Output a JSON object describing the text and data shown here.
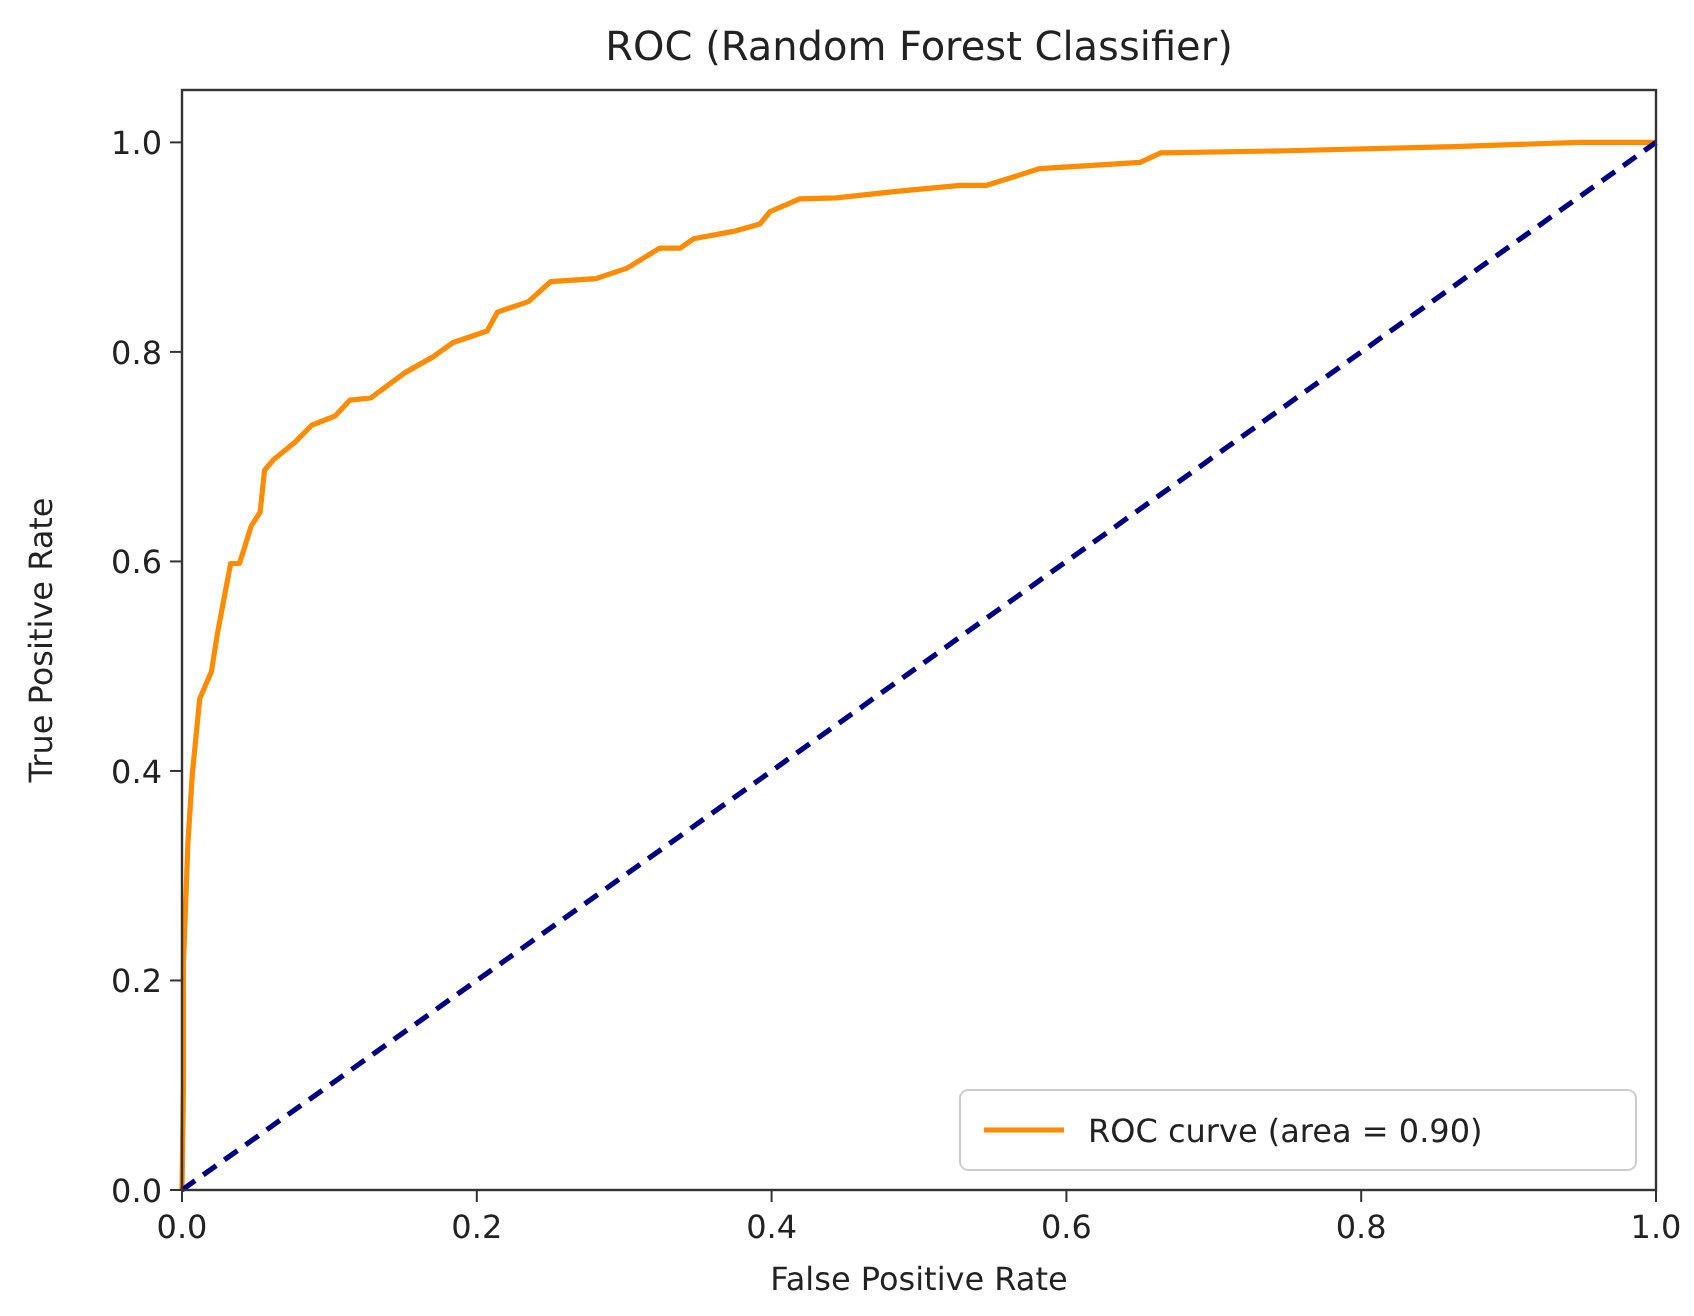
{
  "chart_data": {
    "type": "line",
    "title": "ROC (Random Forest Classifier)",
    "xlabel": "False Positive Rate",
    "ylabel": "True Positive Rate",
    "xlim": [
      0,
      1
    ],
    "ylim": [
      0,
      1.05
    ],
    "xticks": [
      {
        "value": 0,
        "label": "0.0"
      },
      0.2,
      0.4,
      0.6,
      0.8,
      {
        "value": 1,
        "label": "1.0"
      }
    ],
    "yticks": [
      {
        "value": 0,
        "label": "0.0"
      },
      0.2,
      0.4,
      0.6,
      0.8,
      {
        "value": 1,
        "label": "1.0"
      }
    ],
    "legend": "bottom right",
    "grid": false,
    "series": [
      {
        "name": "ROC curve (area = 0.90)",
        "color": "#ff8c00",
        "line_style": "solid",
        "x": [
          0,
          0.001,
          0.001,
          0.004,
          0.007,
          0.012,
          0.02,
          0.024,
          0.033,
          0.039,
          0.047,
          0.053,
          0.056,
          0.062,
          0.076,
          0.088,
          0.104,
          0.114,
          0.128,
          0.151,
          0.17,
          0.184,
          0.207,
          0.214,
          0.235,
          0.25,
          0.281,
          0.302,
          0.324,
          0.338,
          0.347,
          0.374,
          0.392,
          0.399,
          0.419,
          0.444,
          0.483,
          0.528,
          0.546,
          0.582,
          0.618,
          0.65,
          0.664,
          0.749,
          0.863,
          0.948,
          1
        ],
        "values": [
          0,
          0.1,
          0.218,
          0.331,
          0.397,
          0.469,
          0.495,
          0.531,
          0.598,
          0.598,
          0.634,
          0.647,
          0.687,
          0.697,
          0.713,
          0.73,
          0.739,
          0.754,
          0.756,
          0.78,
          0.795,
          0.809,
          0.82,
          0.838,
          0.848,
          0.867,
          0.87,
          0.88,
          0.899,
          0.899,
          0.908,
          0.915,
          0.922,
          0.934,
          0.946,
          0.947,
          0.953,
          0.959,
          0.959,
          0.975,
          0.978,
          0.981,
          0.99,
          0.992,
          0.996,
          1,
          1
        ]
      },
      {
        "color": "#000080",
        "line_style": "dashed",
        "x": [
          0,
          1
        ],
        "values": [
          0,
          1
        ]
      }
    ]
  }
}
